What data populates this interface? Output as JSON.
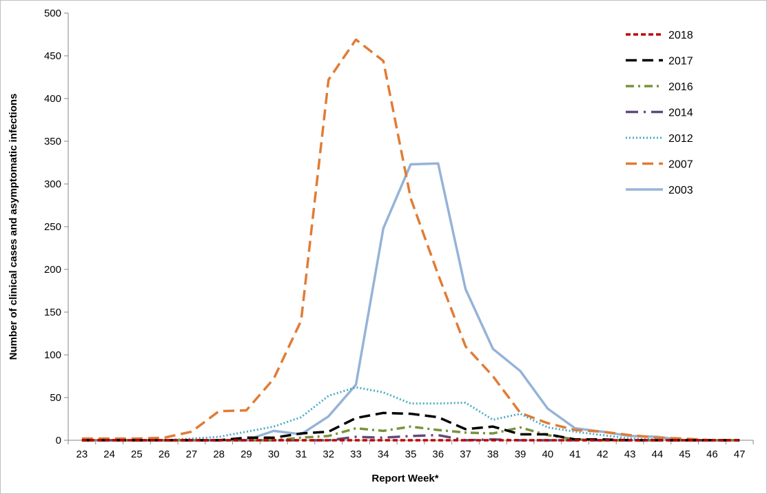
{
  "chart_data": {
    "type": "line",
    "title": "",
    "xlabel": "Report Week*",
    "ylabel": "Number of clinical cases and asymptomatic infections",
    "ylim": [
      0,
      500
    ],
    "yticks": [
      0,
      50,
      100,
      150,
      200,
      250,
      300,
      350,
      400,
      450,
      500
    ],
    "x": [
      23,
      24,
      25,
      26,
      27,
      28,
      29,
      30,
      31,
      32,
      33,
      34,
      35,
      36,
      37,
      38,
      39,
      40,
      41,
      42,
      43,
      44,
      45,
      46,
      47
    ],
    "grid": false,
    "legend_position": "top-right",
    "series": [
      {
        "name": "2018",
        "color": "#c00000",
        "dash": "short-dash",
        "values": [
          0,
          0,
          0,
          0,
          0,
          0,
          0,
          0,
          0,
          0,
          0,
          0,
          0,
          0,
          0,
          0,
          0,
          0,
          0,
          0,
          0,
          0,
          0,
          0,
          0
        ]
      },
      {
        "name": "2017",
        "color": "#000000",
        "dash": "long-dash",
        "values": [
          0,
          0,
          0,
          0,
          0,
          0,
          3,
          3,
          8,
          10,
          26,
          32,
          31,
          27,
          13,
          16,
          7,
          7,
          1,
          1,
          0,
          0,
          0,
          0,
          0
        ]
      },
      {
        "name": "2016",
        "color": "#77933c",
        "dash": "dash-dot",
        "values": [
          0,
          0,
          0,
          0,
          0,
          0,
          0,
          0,
          3,
          5,
          14,
          11,
          16,
          12,
          9,
          8,
          15,
          6,
          1,
          0,
          0,
          0,
          0,
          0,
          0
        ]
      },
      {
        "name": "2014",
        "color": "#604a7b",
        "dash": "long-dash-dot",
        "values": [
          0,
          0,
          0,
          0,
          0,
          0,
          0,
          0,
          0,
          0,
          4,
          3,
          5,
          6,
          0,
          1,
          0,
          0,
          0,
          0,
          0,
          0,
          0,
          0,
          0
        ]
      },
      {
        "name": "2012",
        "color": "#4bacc6",
        "dash": "dot",
        "values": [
          0,
          0,
          0,
          0,
          2,
          4,
          10,
          16,
          27,
          52,
          62,
          56,
          43,
          43,
          44,
          24,
          31,
          15,
          10,
          6,
          2,
          1,
          0,
          0,
          0
        ]
      },
      {
        "name": "2007",
        "color": "#e07c35",
        "dash": "long-dash",
        "values": [
          2,
          2,
          2,
          3,
          10,
          34,
          35,
          72,
          140,
          422,
          469,
          444,
          283,
          194,
          110,
          75,
          32,
          20,
          12,
          10,
          6,
          3,
          2,
          0,
          0
        ]
      },
      {
        "name": "2003",
        "color": "#95b3d7",
        "dash": "solid",
        "values": [
          0,
          0,
          0,
          0,
          0,
          0,
          0,
          11,
          7,
          28,
          65,
          248,
          323,
          324,
          177,
          107,
          81,
          37,
          14,
          10,
          5,
          4,
          0,
          0,
          0
        ]
      }
    ]
  }
}
